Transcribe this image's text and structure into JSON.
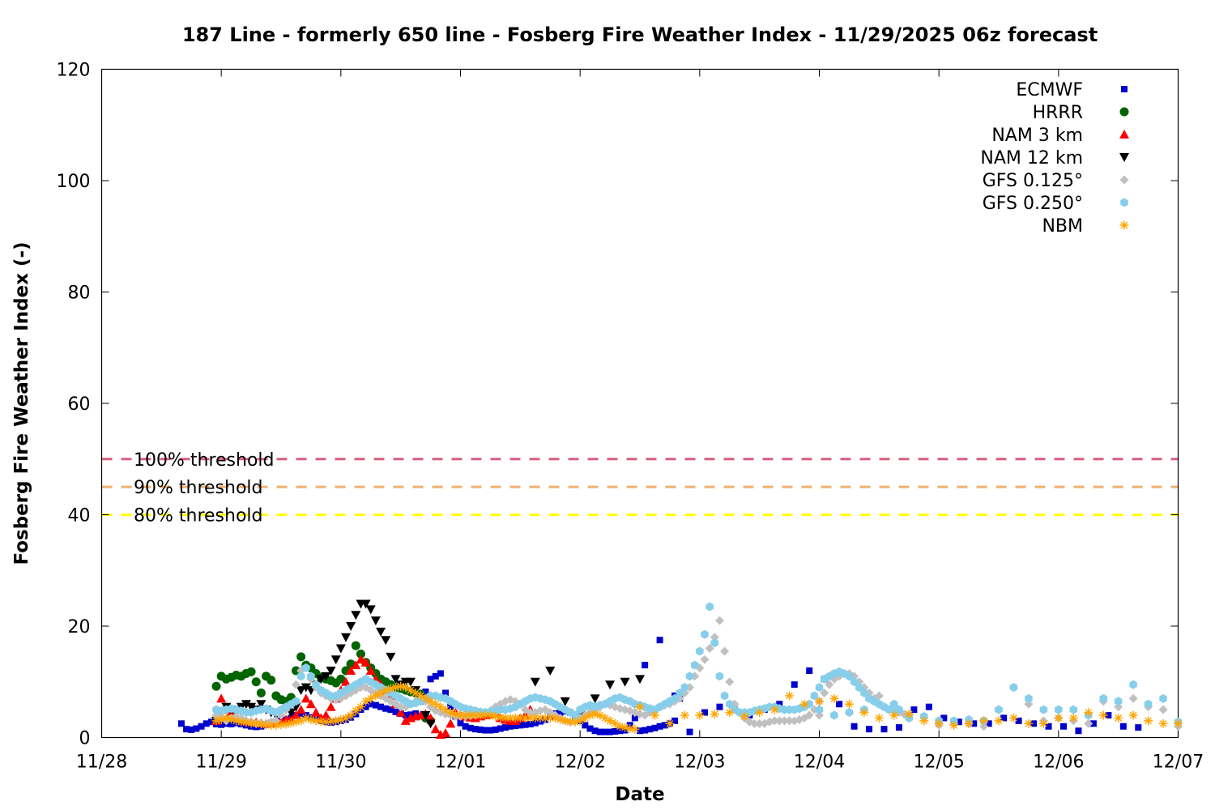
{
  "chart_data": {
    "type": "scatter",
    "title": "187 Line - formerly 650 line - Fosberg Fire Weather Index - 11/29/2025 06z forecast",
    "xlabel": "Date",
    "ylabel": "Fosberg Fire Weather Index (-)",
    "xlim": [
      "2025-11-28T00:00",
      "2025-12-07T00:00"
    ],
    "ylim": [
      0,
      120
    ],
    "x_ticks": [
      "11/28",
      "11/29",
      "11/30",
      "12/01",
      "12/02",
      "12/03",
      "12/04",
      "12/05",
      "12/06",
      "12/07"
    ],
    "y_ticks": [
      0,
      20,
      40,
      60,
      80,
      100,
      120
    ],
    "grid": false,
    "legend_position": "top-right",
    "thresholds": [
      {
        "label": "100% threshold",
        "value": 50,
        "color": "#d95f7f"
      },
      {
        "label": "90% threshold",
        "value": 45,
        "color": "#f0b070"
      },
      {
        "label": "80% threshold",
        "value": 40,
        "color": "#ffff00"
      }
    ],
    "series": [
      {
        "name": "ECMWF",
        "marker": "square",
        "color": "#0000cc",
        "start": "2025-11-28T16:00",
        "step_hours": 1,
        "values": [
          2.5,
          1.5,
          1.4,
          1.6,
          2.0,
          2.5,
          2.8,
          2.4,
          2.3,
          2.5,
          2.4,
          2.6,
          2.4,
          2.2,
          2.0,
          1.9,
          2.0,
          2.3,
          2.6,
          2.8,
          3.0,
          3.2,
          3.5,
          4.0,
          4.3,
          4.0,
          3.6,
          3.3,
          3.0,
          2.8,
          2.7,
          2.8,
          3.0,
          3.2,
          3.6,
          4.2,
          5.0,
          5.5,
          6.0,
          5.8,
          5.5,
          5.2,
          5.0,
          4.6,
          4.3,
          4.0,
          4.1,
          4.3,
          6.5,
          8.2,
          10.5,
          11.0,
          11.5,
          8.0,
          5.5,
          3.8,
          2.6,
          2.0,
          1.7,
          1.5,
          1.4,
          1.3,
          1.3,
          1.4,
          1.6,
          1.8,
          2.0,
          2.1,
          2.2,
          2.3,
          2.4,
          2.6,
          2.9,
          3.2,
          3.8,
          4.3,
          4.5,
          4.7,
          4.5,
          3.8,
          3.0,
          2.2,
          1.6,
          1.2,
          1.0,
          1.0,
          1.0,
          1.1,
          1.2,
          1.3,
          2.2,
          3.5,
          1.2,
          1.3,
          1.5,
          1.7,
          2.0,
          2.2,
          2.5,
          3.0,
          7.0
        ],
        "tail_start": "2025-12-02T13:00",
        "tail_step_hours": 3,
        "tail_values": [
          13.0,
          17.5,
          7.5,
          1.0,
          4.5,
          5.5,
          5.0,
          4.0,
          5.0,
          6.0,
          9.5,
          12.0,
          10.5,
          6.0,
          2.0,
          1.5,
          1.5,
          1.8,
          5.0,
          5.5,
          3.5,
          2.8,
          2.5,
          2.5,
          3.5,
          3.0,
          2.5,
          2.0,
          2.0,
          1.2,
          2.5,
          4.0,
          2.0,
          1.8
        ]
      },
      {
        "name": "HRRR",
        "marker": "circle",
        "color": "#006400",
        "start": "2025-11-28T23:00",
        "step_hours": 1,
        "values": [
          9.2,
          11.0,
          10.5,
          10.8,
          11.2,
          11.0,
          11.5,
          11.8,
          10.0,
          8.0,
          11.0,
          10.3,
          7.5,
          6.8,
          6.5,
          7.2,
          12.0,
          14.5,
          13.0,
          12.5,
          11.5,
          10.8,
          10.5,
          10.2,
          9.8,
          10.5,
          12.0,
          13.2,
          16.5,
          15.0,
          13.5,
          12.5,
          11.5,
          10.5,
          10.0,
          9.5,
          9.0,
          8.8,
          8.5,
          8.2,
          8.0,
          7.8,
          3.5,
          3.0
        ]
      },
      {
        "name": "NAM 3 km",
        "marker": "triangle-up",
        "color": "#ff0000",
        "start": "2025-11-28T23:00",
        "step_hours": 1,
        "values": [
          3.0,
          7.0,
          5.0,
          4.5,
          4.0,
          3.5,
          3.0,
          2.8,
          2.7,
          2.6,
          2.5,
          2.6,
          2.8,
          3.0,
          3.2,
          3.5,
          4.0,
          5.0,
          7.0,
          6.0,
          4.5,
          3.5,
          4.0,
          5.5,
          7.0,
          8.5,
          10.0,
          12.0,
          13.0,
          14.0,
          13.5,
          12.0,
          10.5,
          9.5,
          8.5,
          7.5,
          6.0,
          4.5,
          3.0,
          3.5,
          3.8,
          4.0,
          4.2,
          3.5,
          1.5,
          0.5,
          0.8,
          2.5,
          4.5,
          4.0,
          3.8,
          3.6,
          3.5,
          3.8,
          4.0,
          4.2,
          4.5,
          3.5,
          3.2,
          3.0,
          3.0,
          3.5,
          4.0,
          5.0
        ]
      },
      {
        "name": "NAM 12 km",
        "marker": "triangle-down",
        "color": "#000000",
        "start": "2025-11-28T23:00",
        "step_hours": 1,
        "values": [
          3.0,
          4.5,
          5.5,
          5.0,
          4.5,
          5.5,
          6.0,
          5.5,
          5.0,
          6.0,
          5.0,
          4.5,
          4.0,
          4.5,
          5.0,
          4.5,
          5.5,
          8.5,
          9.0,
          8.5,
          9.5,
          10.5,
          11.0,
          12.0,
          14.0,
          16.0,
          18.0,
          20.0,
          22.0,
          24.0,
          24.0,
          23.0,
          21.0,
          19.0,
          17.5,
          14.5,
          10.5,
          9.5,
          10.0,
          10.0,
          8.5,
          7.0,
          4.0,
          2.5
        ],
        "tail_start": "2025-12-01T15:00",
        "tail_step_hours": 3,
        "tail_values": [
          10.0,
          12.0,
          6.5,
          4.0,
          7.0,
          9.5,
          10.0,
          10.5
        ]
      },
      {
        "name": "GFS 0.125°",
        "marker": "diamond",
        "color": "#c0c0c0",
        "start": "2025-11-28T23:00",
        "step_hours": 1,
        "values": [
          4.0,
          3.5,
          3.0,
          3.5,
          3.8,
          3.5,
          3.0,
          2.8,
          2.5,
          2.6,
          2.5,
          2.8,
          3.0,
          4.0,
          5.0,
          6.0,
          9.5,
          12.0,
          12.5,
          10.5,
          9.0,
          8.0,
          7.5,
          7.0,
          6.8,
          7.0,
          7.5,
          8.0,
          8.5,
          9.0,
          9.0,
          8.5,
          8.0,
          7.5,
          7.0,
          6.5,
          6.0,
          5.5,
          5.5,
          6.0,
          6.5,
          7.0,
          6.5,
          5.5,
          4.8,
          4.5,
          4.2,
          4.0,
          3.8,
          3.8,
          3.8,
          3.9,
          4.0,
          4.2,
          4.5,
          4.8,
          5.5,
          6.0,
          6.5,
          6.8,
          6.5,
          6.0,
          5.0,
          4.5,
          4.5,
          4.8,
          5.0,
          4.5,
          4.0,
          3.5,
          3.0,
          2.8,
          3.0,
          3.5,
          4.0,
          4.5,
          5.0,
          5.5,
          6.0,
          5.8,
          5.5,
          5.2,
          5.0,
          4.8,
          4.5,
          4.2,
          4.0,
          4.5,
          5.0,
          5.5,
          5.8,
          6.0,
          6.5,
          7.0,
          8.0,
          9.0,
          11.0,
          12.5,
          14.0,
          16.0,
          18.0,
          21.0,
          15.5,
          10.0,
          6.0,
          4.5,
          3.5,
          2.8,
          2.5,
          2.5,
          2.5,
          2.8,
          3.0,
          3.0,
          3.0,
          3.0,
          3.0,
          3.2,
          3.5,
          4.0,
          5.0,
          6.5,
          8.0,
          9.5,
          10.5,
          11.0,
          11.5,
          11.5,
          11.0,
          10.0,
          9.0,
          8.0,
          7.0,
          6.0,
          5.5,
          5.0,
          4.8,
          4.5,
          4.2,
          4.0
        ],
        "tail_start": "2025-12-04T00:00",
        "tail_step_hours": 3,
        "tail_values": [
          4.0,
          4.0,
          4.5,
          5.0,
          7.5,
          5.0,
          3.5,
          3.5,
          2.2,
          2.5,
          2.5,
          2.0,
          5.0,
          9.0,
          6.0,
          3.0,
          3.5,
          3.0,
          2.5,
          6.5,
          5.5,
          7.0,
          5.5,
          5.0,
          2.0,
          1.5
        ]
      },
      {
        "name": "GFS 0.250°",
        "marker": "hexagon",
        "color": "#87ceeb",
        "start": "2025-11-28T23:00",
        "step_hours": 1,
        "values": [
          5.0,
          4.8,
          5.0,
          5.2,
          5.0,
          4.8,
          4.5,
          4.5,
          4.8,
          5.0,
          5.2,
          4.8,
          4.5,
          5.0,
          5.5,
          6.0,
          6.5,
          11.0,
          12.5,
          11.0,
          9.5,
          8.5,
          8.0,
          7.5,
          7.5,
          8.0,
          8.5,
          9.0,
          9.5,
          10.0,
          10.5,
          10.0,
          9.5,
          9.0,
          8.5,
          8.0,
          7.5,
          7.0,
          6.5,
          6.0,
          6.2,
          6.5,
          7.0,
          7.5,
          7.5,
          7.2,
          7.0,
          6.5,
          6.0,
          5.5,
          5.2,
          5.0,
          4.8,
          4.6,
          4.5,
          4.6,
          4.8,
          5.0,
          5.0,
          5.2,
          5.5,
          6.0,
          6.5,
          7.0,
          7.2,
          7.0,
          6.8,
          6.5,
          6.0,
          5.5,
          5.0,
          4.5,
          4.0,
          5.0,
          5.5,
          5.8,
          5.5,
          5.8,
          6.0,
          6.5,
          7.0,
          7.2,
          6.8,
          6.5,
          6.0,
          5.8,
          5.5,
          5.2,
          5.0,
          5.5,
          6.0,
          6.5,
          7.0,
          8.0,
          9.0,
          11.0,
          13.0,
          15.5,
          18.5,
          23.5,
          17.0,
          11.0,
          7.5,
          6.0,
          5.0,
          4.5,
          4.5,
          4.5,
          4.8,
          5.0,
          5.2,
          5.5,
          5.5,
          5.2,
          5.0,
          5.0,
          5.0,
          5.2,
          5.5,
          6.0,
          7.5,
          9.0,
          10.5,
          11.0,
          11.5,
          11.8,
          11.5,
          11.0,
          10.0,
          9.0,
          8.0,
          7.0,
          6.5,
          6.0,
          5.5,
          5.0,
          5.0,
          5.0
        ],
        "tail_start": "2025-12-04T00:00",
        "tail_step_hours": 3,
        "tail_values": [
          5.0,
          4.0,
          4.5,
          5.0,
          6.0,
          6.0,
          3.5,
          3.8,
          3.0,
          3.0,
          3.2,
          3.0,
          5.0,
          9.0,
          7.0,
          5.0,
          5.0,
          5.0,
          4.0,
          7.0,
          6.5,
          9.5,
          6.0,
          7.0,
          2.8,
          2.2
        ]
      },
      {
        "name": "NBM",
        "marker": "star",
        "color": "#ffa500",
        "start": "2025-11-28T23:00",
        "step_hours": 1,
        "values": [
          3.0,
          3.2,
          3.5,
          3.3,
          3.0,
          2.8,
          2.7,
          2.6,
          2.5,
          2.4,
          2.3,
          2.2,
          2.2,
          2.3,
          2.4,
          2.6,
          2.8,
          3.0,
          3.5,
          3.2,
          3.0,
          2.9,
          2.8,
          2.9,
          3.0,
          3.2,
          3.5,
          4.0,
          4.8,
          5.5,
          6.5,
          7.0,
          7.5,
          8.0,
          8.5,
          8.8,
          9.0,
          9.2,
          9.0,
          8.5,
          8.0,
          7.5,
          7.0,
          6.5,
          6.0,
          5.5,
          5.0,
          4.5,
          4.2,
          4.0,
          4.0,
          4.0,
          4.0,
          4.0,
          4.0,
          4.0,
          3.8,
          3.6,
          3.5,
          3.5,
          3.5,
          3.5,
          3.5,
          3.5,
          3.5,
          3.5,
          3.5,
          3.5,
          3.5,
          3.2,
          3.0,
          2.8,
          2.8,
          3.0,
          3.5,
          4.0,
          4.2,
          4.0,
          3.5,
          3.0,
          2.5,
          2.0,
          1.8,
          1.6,
          1.5
        ],
        "tail_start": "2025-12-02T12:00",
        "tail_step_hours": 3,
        "tail_values": [
          5.5,
          4.0,
          2.5,
          4.0,
          4.0,
          4.2,
          4.5,
          3.8,
          4.5,
          5.0,
          7.5,
          6.0,
          6.5,
          7.0,
          6.0,
          4.5,
          3.5,
          4.0,
          4.2,
          3.0,
          2.5,
          2.2,
          2.5,
          3.0,
          3.0,
          3.5,
          2.5,
          2.5,
          3.5,
          3.5,
          4.5,
          4.0,
          3.5,
          4.0,
          3.0,
          2.5,
          2.5,
          2.8
        ]
      }
    ]
  }
}
